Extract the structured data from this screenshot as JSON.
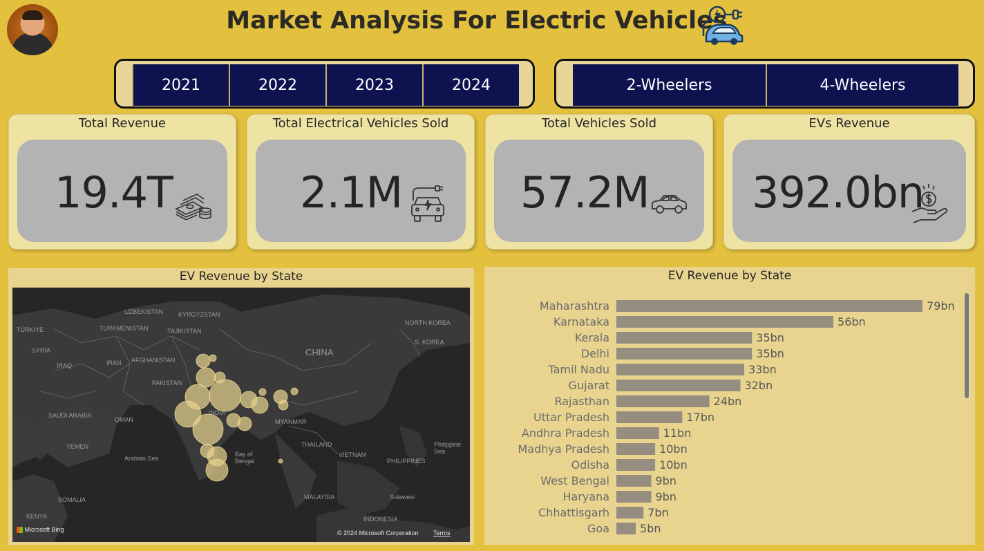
{
  "header": {
    "title": "Market Analysis For Electric Vehicles",
    "icons": [
      "avatar",
      "ev-charging-car-icon"
    ]
  },
  "slicers": {
    "years": [
      "2021",
      "2022",
      "2023",
      "2024"
    ],
    "vehicle_types": [
      "2-Wheelers",
      "4-Wheelers"
    ]
  },
  "cards": [
    {
      "title": "Total Revenue",
      "value": "19.4T",
      "icon": "money-stack-icon"
    },
    {
      "title": "Total Electrical Vehicles Sold",
      "value": "2.1M",
      "icon": "ev-charging-icon"
    },
    {
      "title": "Total Vehicles Sold",
      "value": "57.2M",
      "icon": "car-icon"
    },
    {
      "title": "EVs Revenue",
      "value": "392.0bn",
      "icon": "dollar-hand-icon"
    }
  ],
  "map": {
    "title": "EV Revenue by State",
    "labels": [
      "UZBEKISTAN",
      "KYRGYZSTAN",
      "TÜRKIYE",
      "TURKMENISTAN",
      "TAJIKISTAN",
      "SYRIA",
      "IRAN",
      "AFGHANISTAN",
      "IRAQ",
      "PAKISTAN",
      "SAUDI ARABIA",
      "OMAN",
      "YEMEN",
      "Arabian Sea",
      "INDIA",
      "Bay of Bengal",
      "MYANMAR",
      "THAILAND",
      "VIETNAM",
      "PHILIPPINES",
      "Philippine Sea",
      "CHINA",
      "NORTH KOREA",
      "S. KOREA",
      "MALAYSIA",
      "INDONESIA",
      "SOMALIA",
      "KENYA",
      "Sulawesi"
    ],
    "attribution": "© 2024 Microsoft Corporation",
    "terms": "Terms",
    "logo": "Microsoft Bing"
  },
  "chart_data": {
    "type": "bar",
    "orientation": "horizontal",
    "title": "EV Revenue by State",
    "categories": [
      "Maharashtra",
      "Karnataka",
      "Kerala",
      "Delhi",
      "Tamil Nadu",
      "Gujarat",
      "Rajasthan",
      "Uttar Pradesh",
      "Andhra Pradesh",
      "Madhya Pradesh",
      "Odisha",
      "West Bengal",
      "Haryana",
      "Chhattisgarh",
      "Goa"
    ],
    "values": [
      79,
      56,
      35,
      35,
      33,
      32,
      24,
      17,
      11,
      10,
      10,
      9,
      9,
      7,
      5
    ],
    "data_labels": [
      "79bn",
      "56bn",
      "35bn",
      "35bn",
      "33bn",
      "32bn",
      "24bn",
      "17bn",
      "11bn",
      "10bn",
      "10bn",
      "9bn",
      "9bn",
      "7bn",
      "5bn"
    ],
    "unit": "bn",
    "bar_color": "#958d7f",
    "grid": false
  },
  "colors": {
    "background": "#e3c03d",
    "slicer_button": "#0e1350",
    "card": "#efe3a3",
    "card_inner": "#b3b3b3",
    "panel": "#e8d48f",
    "map_bubble": "#e8d48f"
  }
}
